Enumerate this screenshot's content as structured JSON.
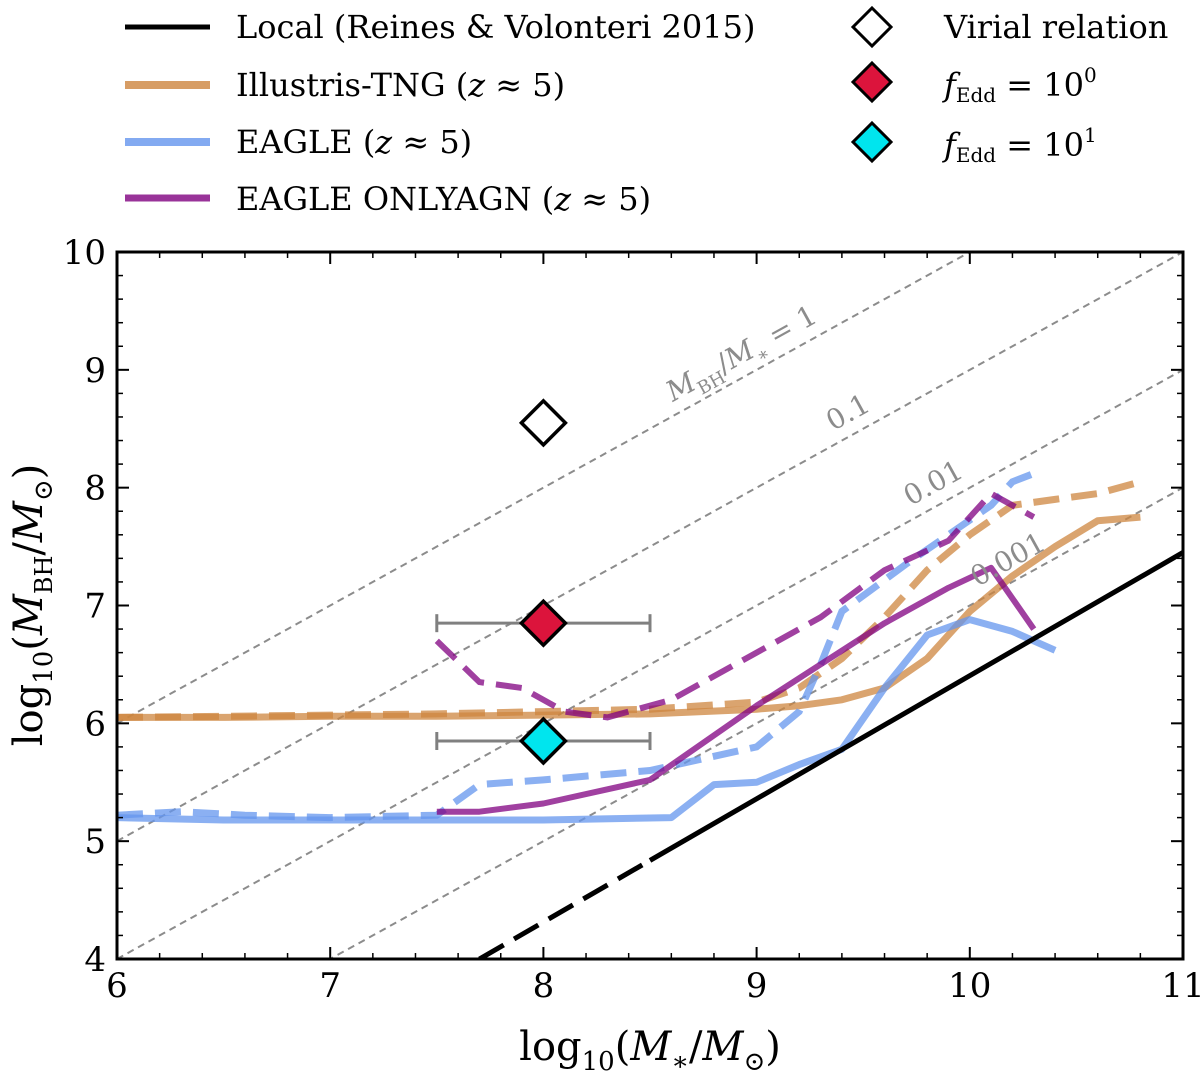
{
  "chart_data": {
    "type": "line",
    "xlabel": "log10(M*/M⊙)",
    "ylabel": "log10(MBH/M⊙)",
    "xlim": [
      6,
      11
    ],
    "ylim": [
      4,
      10
    ],
    "xticks": [
      "6",
      "7",
      "8",
      "9",
      "10",
      "11"
    ],
    "yticks": [
      "4",
      "5",
      "6",
      "7",
      "8",
      "9",
      "10"
    ],
    "ratio_lines": [
      {
        "label": "MBH/M* = 1",
        "offset": 0
      },
      {
        "label": "0.1",
        "offset": -1
      },
      {
        "label": "0.01",
        "offset": -2
      },
      {
        "label": "0.001",
        "offset": -3
      }
    ],
    "local_relation": {
      "name": "Local (Reines & Volonteri 2015)",
      "color": "#000000",
      "x": [
        7.7,
        11.0
      ],
      "y": [
        4.0,
        7.45
      ],
      "dashed_until_x": 8.5
    },
    "series": [
      {
        "name": "Illustris-TNG (z ≈ 5)",
        "color": "#cd853f",
        "solid": {
          "x": [
            6.0,
            6.5,
            7.0,
            7.5,
            8.0,
            8.5,
            9.0,
            9.2,
            9.4,
            9.6,
            9.8,
            10.0,
            10.2,
            10.4,
            10.6,
            10.8
          ],
          "y": [
            6.05,
            6.05,
            6.06,
            6.06,
            6.07,
            6.08,
            6.12,
            6.15,
            6.2,
            6.3,
            6.55,
            6.95,
            7.25,
            7.5,
            7.72,
            7.75
          ]
        },
        "dashed": {
          "x": [
            6.0,
            6.5,
            7.0,
            7.5,
            8.0,
            8.5,
            9.0,
            9.2,
            9.4,
            9.6,
            9.8,
            10.0,
            10.2,
            10.4,
            10.6,
            10.8
          ],
          "y": [
            6.05,
            6.06,
            6.07,
            6.08,
            6.1,
            6.12,
            6.18,
            6.3,
            6.55,
            6.9,
            7.3,
            7.6,
            7.85,
            7.9,
            7.95,
            8.05
          ]
        }
      },
      {
        "name": "EAGLE (z ≈ 5)",
        "color": "#6495ed",
        "solid": {
          "x": [
            6.0,
            6.5,
            7.0,
            7.5,
            8.0,
            8.6,
            8.8,
            9.0,
            9.2,
            9.4,
            9.6,
            9.8,
            10.0,
            10.2,
            10.4
          ],
          "y": [
            5.2,
            5.18,
            5.18,
            5.18,
            5.18,
            5.2,
            5.48,
            5.5,
            5.65,
            5.78,
            6.3,
            6.75,
            6.88,
            6.78,
            6.62
          ]
        },
        "dashed": {
          "x": [
            6.0,
            6.3,
            6.6,
            7.0,
            7.5,
            7.7,
            8.0,
            8.5,
            9.0,
            9.2,
            9.3,
            9.4,
            9.7,
            9.9,
            10.1,
            10.2,
            10.3
          ],
          "y": [
            5.22,
            5.25,
            5.22,
            5.2,
            5.22,
            5.48,
            5.52,
            5.6,
            5.8,
            6.1,
            6.5,
            6.95,
            7.35,
            7.6,
            7.85,
            8.05,
            8.12
          ]
        }
      },
      {
        "name": "EAGLE ONLYAGN (z ≈ 5)",
        "color": "#800080",
        "solid": {
          "x": [
            7.5,
            7.7,
            8.0,
            8.5,
            9.0,
            9.3,
            9.6,
            9.9,
            10.1,
            10.3
          ],
          "y": [
            5.25,
            5.25,
            5.32,
            5.52,
            6.15,
            6.5,
            6.85,
            7.15,
            7.32,
            6.8
          ]
        },
        "dashed": {
          "x": [
            7.5,
            7.7,
            7.9,
            8.1,
            8.3,
            8.6,
            9.0,
            9.3,
            9.6,
            9.9,
            10.1,
            10.3
          ],
          "y": [
            6.7,
            6.35,
            6.3,
            6.1,
            6.05,
            6.2,
            6.6,
            6.9,
            7.3,
            7.55,
            7.95,
            7.75
          ]
        }
      }
    ],
    "points": [
      {
        "name": "Virial relation",
        "x": 8.0,
        "y": 8.55,
        "fill": "#ffffff",
        "xerr": null
      },
      {
        "name": "fEdd = 10^0",
        "x": 8.0,
        "y": 6.85,
        "fill": "#dc143c",
        "xerr": 0.5
      },
      {
        "name": "fEdd = 10^1",
        "x": 8.0,
        "y": 5.85,
        "fill": "#00e5ee",
        "xerr": 0.5
      }
    ],
    "legend": {
      "lines": [
        {
          "label": "Local (Reines & Volonteri 2015)",
          "color": "#000000"
        },
        {
          "label": "Illustris-TNG (z ≈ 5)",
          "color": "#cd853f"
        },
        {
          "label": "EAGLE (z ≈ 5)",
          "color": "#6495ed"
        },
        {
          "label": "EAGLE ONLYAGN (z ≈ 5)",
          "color": "#800080"
        }
      ],
      "markers": [
        {
          "label": "Virial relation",
          "fill": "#ffffff"
        },
        {
          "label": "fEdd = 10^0",
          "fill": "#dc143c"
        },
        {
          "label": "fEdd = 10^1",
          "fill": "#00e5ee"
        }
      ],
      "placement": "top, above plot"
    }
  }
}
